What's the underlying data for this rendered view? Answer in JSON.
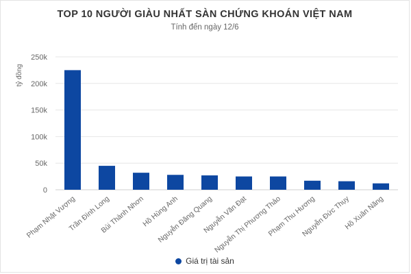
{
  "header": {
    "title": "TOP 10 NGƯỜI GIÀU NHẤT SÀN CHỨNG KHOÁN VIỆT NAM",
    "subtitle": "Tính đến ngày 12/6"
  },
  "chart_data": {
    "type": "bar",
    "ylabel": "tỷ đồng",
    "ylim": [
      0,
      250000
    ],
    "yticks": [
      0,
      50000,
      100000,
      150000,
      200000,
      250000
    ],
    "ytick_labels": [
      "0",
      "50k",
      "100k",
      "150k",
      "200k",
      "250k"
    ],
    "grid": true,
    "legend": "bottom",
    "bar_color": "#0d47a1",
    "categories": [
      "Phạm Nhật Vượng",
      "Trần Đình Long",
      "Bùi Thành Nhơn",
      "Hồ Hùng Anh",
      "Nguyễn Đăng Quang",
      "Nguyễn Văn Đạt",
      "Nguyễn Thị Phương Thảo",
      "Phạm Thu Hương",
      "Nguyễn Đức Thụy",
      "Hồ Xuân Năng"
    ],
    "series": [
      {
        "name": "Giá trị tài sản",
        "values": [
          225000,
          45000,
          32000,
          28000,
          27000,
          25000,
          25000,
          17000,
          16000,
          12000
        ]
      }
    ]
  }
}
